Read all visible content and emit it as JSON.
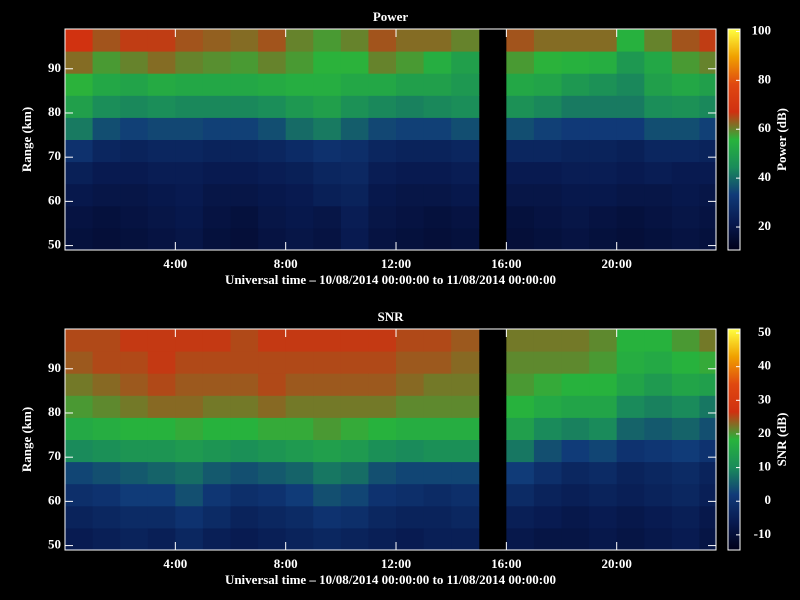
{
  "chart_data": [
    {
      "type": "heatmap",
      "title": "Power",
      "xlabel": "Universal time – 10/08/2014 00:00:00 to 11/08/2014 00:00:00",
      "ylabel": "Range (km)",
      "colorbar_label": "Power (dB)",
      "xlim": [
        0,
        23.6
      ],
      "ylim": [
        49,
        99
      ],
      "xticks": [
        {
          "value": 4,
          "label": "4:00"
        },
        {
          "value": 8,
          "label": "8:00"
        },
        {
          "value": 12,
          "label": "12:00"
        },
        {
          "value": 16,
          "label": "16:00"
        },
        {
          "value": 20,
          "label": "20:00"
        }
      ],
      "yticks": [
        50,
        60,
        70,
        80,
        90
      ],
      "zlim": [
        10.6,
        101
      ],
      "zticks": [
        20,
        40,
        60,
        80,
        100
      ],
      "colormap": [
        "#00001a",
        "#081a50",
        "#103a78",
        "#1a8c5a",
        "#28b43c",
        "#d03010",
        "#e04810",
        "#f0a000",
        "#ffff40"
      ],
      "xbins": [
        0,
        1,
        2,
        3,
        4,
        5,
        6,
        7,
        8,
        9,
        10,
        11,
        12,
        13,
        14,
        15,
        16,
        17,
        18,
        19,
        20,
        21,
        22,
        23,
        23.6
      ],
      "ybins": [
        49,
        54,
        59,
        64,
        69,
        74,
        79,
        84,
        89,
        94,
        99
      ],
      "z": [
        [
          18,
          17,
          18,
          19,
          20,
          18,
          17,
          19,
          20,
          19,
          22,
          19,
          18,
          17,
          18,
          null,
          17,
          18,
          19,
          18,
          17,
          18,
          19,
          18
        ],
        [
          19,
          18,
          19,
          20,
          21,
          19,
          18,
          20,
          21,
          20,
          23,
          20,
          19,
          18,
          19,
          null,
          18,
          19,
          20,
          19,
          18,
          19,
          20,
          19
        ],
        [
          21,
          20,
          20,
          21,
          22,
          20,
          20,
          21,
          22,
          24,
          25,
          21,
          20,
          20,
          21,
          null,
          20,
          20,
          21,
          21,
          20,
          20,
          21,
          20
        ],
        [
          24,
          22,
          22,
          23,
          23,
          22,
          22,
          23,
          24,
          26,
          27,
          23,
          22,
          22,
          23,
          null,
          22,
          22,
          23,
          23,
          22,
          23,
          22,
          22
        ],
        [
          30,
          26,
          25,
          26,
          26,
          25,
          25,
          26,
          28,
          30,
          29,
          26,
          25,
          25,
          26,
          null,
          26,
          26,
          25,
          25,
          24,
          26,
          26,
          25
        ],
        [
          42,
          36,
          34,
          35,
          35,
          34,
          34,
          36,
          40,
          42,
          38,
          35,
          34,
          34,
          36,
          null,
          36,
          34,
          33,
          33,
          33,
          36,
          36,
          34
        ],
        [
          50,
          45,
          44,
          45,
          44,
          44,
          44,
          45,
          48,
          50,
          46,
          44,
          43,
          44,
          45,
          null,
          46,
          44,
          42,
          42,
          42,
          45,
          46,
          44
        ],
        [
          56,
          52,
          51,
          53,
          52,
          52,
          52,
          53,
          54,
          54,
          52,
          52,
          50,
          50,
          48,
          null,
          52,
          51,
          48,
          46,
          44,
          50,
          52,
          50
        ],
        [
          62,
          58,
          60,
          62,
          60,
          59,
          58,
          60,
          58,
          56,
          56,
          60,
          58,
          54,
          50,
          null,
          58,
          56,
          55,
          54,
          48,
          52,
          58,
          60
        ],
        [
          68,
          64,
          66,
          66,
          64,
          63,
          62,
          64,
          60,
          58,
          60,
          64,
          62,
          62,
          60,
          null,
          64,
          62,
          62,
          62,
          55,
          60,
          64,
          66
        ]
      ]
    },
    {
      "type": "heatmap",
      "title": "SNR",
      "xlabel": "Universal time – 10/08/2014 00:00:00 to 11/08/2014 00:00:00",
      "ylabel": "Range (km)",
      "colorbar_label": "SNR (dB)",
      "xlim": [
        0,
        23.6
      ],
      "ylim": [
        49,
        99
      ],
      "xticks": [
        {
          "value": 4,
          "label": "4:00"
        },
        {
          "value": 8,
          "label": "8:00"
        },
        {
          "value": 12,
          "label": "12:00"
        },
        {
          "value": 16,
          "label": "16:00"
        },
        {
          "value": 20,
          "label": "20:00"
        }
      ],
      "yticks": [
        50,
        60,
        70,
        80,
        90
      ],
      "zlim": [
        -14.5,
        51.2
      ],
      "zticks": [
        -10,
        0,
        10,
        20,
        30,
        40,
        50
      ],
      "colormap": [
        "#00001a",
        "#081a50",
        "#103a78",
        "#1a8c5a",
        "#28b43c",
        "#d03010",
        "#e04810",
        "#f0a000",
        "#ffff40"
      ],
      "xbins": [
        0,
        1,
        2,
        3,
        4,
        5,
        6,
        7,
        8,
        9,
        10,
        11,
        12,
        13,
        14,
        15,
        16,
        17,
        18,
        19,
        20,
        21,
        22,
        23,
        23.6
      ],
      "ybins": [
        49,
        54,
        59,
        64,
        69,
        74,
        79,
        84,
        89,
        94,
        99
      ],
      "z": [
        [
          -6,
          -5,
          -4,
          -5,
          -3,
          -5,
          -6,
          -5,
          -4,
          -3,
          -4,
          -5,
          -6,
          -5,
          -5,
          null,
          -7,
          -8,
          -8,
          -7,
          -8,
          -7,
          -6,
          -8
        ],
        [
          -4,
          -3,
          -2,
          -2,
          0,
          -2,
          -4,
          -3,
          -2,
          0,
          -1,
          -3,
          -4,
          -4,
          -3,
          null,
          -5,
          -6,
          -7,
          -6,
          -7,
          -6,
          -5,
          -7
        ],
        [
          -1,
          0,
          2,
          2,
          4,
          1,
          -1,
          0,
          2,
          4,
          3,
          0,
          -1,
          -2,
          -1,
          null,
          -2,
          -4,
          -5,
          -4,
          -5,
          -4,
          -3,
          -5
        ],
        [
          3,
          4,
          5,
          6,
          7,
          5,
          4,
          5,
          6,
          8,
          7,
          4,
          3,
          3,
          3,
          null,
          2,
          -1,
          -3,
          -2,
          -4,
          -3,
          -2,
          -4
        ],
        [
          10,
          11,
          12,
          12,
          13,
          12,
          11,
          12,
          13,
          14,
          13,
          11,
          10,
          11,
          11,
          null,
          8,
          4,
          2,
          3,
          0,
          1,
          2,
          0
        ],
        [
          16,
          17,
          18,
          18,
          19,
          18,
          18,
          19,
          19,
          20,
          19,
          18,
          17,
          17,
          17,
          null,
          14,
          10,
          9,
          10,
          6,
          5,
          6,
          4
        ],
        [
          20,
          21,
          22,
          23,
          23,
          22,
          22,
          23,
          22,
          22,
          22,
          22,
          21,
          21,
          21,
          null,
          18,
          16,
          15,
          15,
          10,
          9,
          10,
          8
        ],
        [
          22,
          23,
          24,
          25,
          24,
          24,
          24,
          25,
          24,
          24,
          24,
          24,
          23,
          22,
          22,
          null,
          20,
          19,
          18,
          18,
          15,
          13,
          15,
          14
        ],
        [
          24,
          25,
          25,
          26,
          25,
          25,
          25,
          25,
          25,
          25,
          25,
          25,
          24,
          24,
          23,
          null,
          21,
          21,
          21,
          20,
          17,
          16,
          18,
          19
        ],
        [
          25,
          25,
          26,
          26,
          26,
          26,
          25,
          26,
          26,
          26,
          26,
          26,
          25,
          25,
          24,
          null,
          22,
          22,
          22,
          21,
          18,
          18,
          20,
          22
        ]
      ]
    }
  ]
}
